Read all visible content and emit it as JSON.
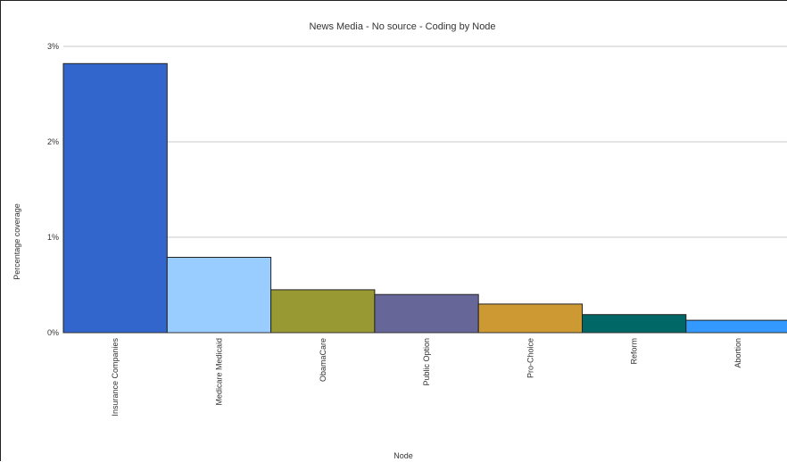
{
  "chart_data": {
    "type": "bar",
    "title": "News Media - No source - Coding by Node",
    "xlabel": "Node",
    "ylabel": "Percentage coverage",
    "categories": [
      "Insurance Companies",
      "Medicare Medicaid",
      "ObamaCare",
      "Public Option",
      "Pro-Choice",
      "Reform",
      "Abortion"
    ],
    "values": [
      2.82,
      0.79,
      0.45,
      0.4,
      0.3,
      0.19,
      0.13
    ],
    "ylim": [
      0,
      3
    ],
    "yticks": [
      0,
      1,
      2,
      3
    ],
    "ytick_labels": [
      "0%",
      "1%",
      "2%",
      "3%"
    ],
    "grid": true,
    "colors": [
      "#3366cc",
      "#99ccff",
      "#999933",
      "#666699",
      "#cc9933",
      "#006666",
      "#3399ff"
    ]
  }
}
